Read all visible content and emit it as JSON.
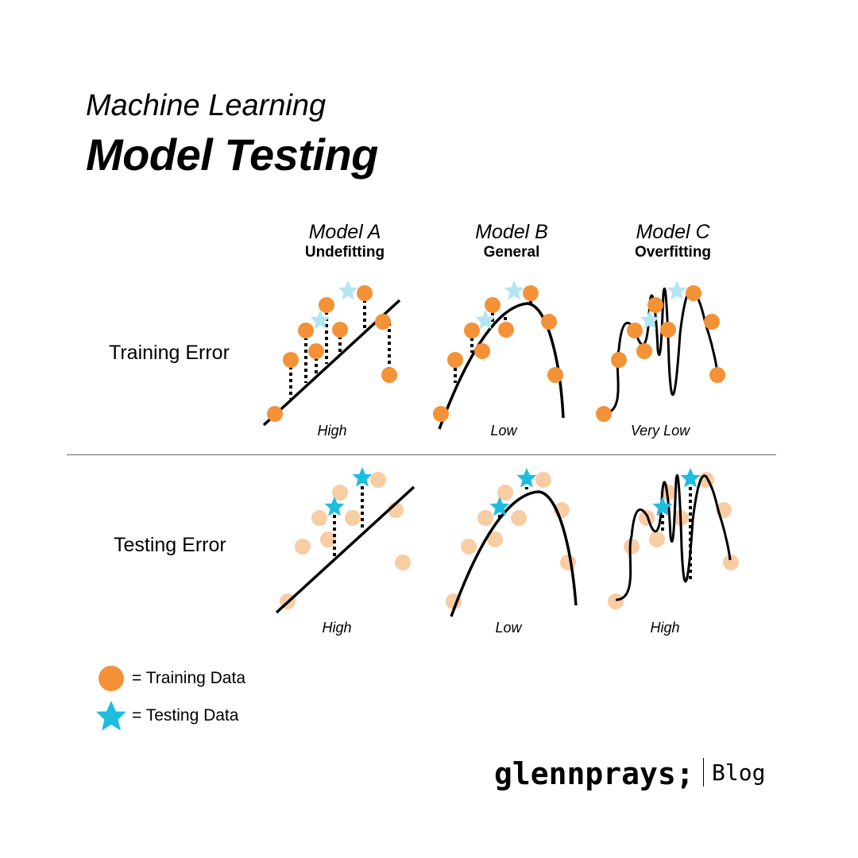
{
  "header": {
    "subtitle": "Machine Learning",
    "title": "Model Testing"
  },
  "models": [
    {
      "name": "Model A",
      "type": "Undefitting",
      "training_error": "High",
      "testing_error": "High"
    },
    {
      "name": "Model B",
      "type": "General",
      "training_error": "Low",
      "testing_error": "Low"
    },
    {
      "name": "Model C",
      "type": "Overfitting",
      "training_error": "Very Low",
      "testing_error": "High"
    }
  ],
  "rows": {
    "training": "Training Error",
    "testing": "Testing Error"
  },
  "legend": {
    "training": "= Training Data",
    "testing": "= Testing Data"
  },
  "brand": {
    "name": "glennprays;",
    "blog": "Blog"
  },
  "colors": {
    "training_point": "#F39237",
    "training_point_faded": "#F8CDA3",
    "testing_point": "#1DBDE0",
    "testing_point_faded": "#B3E6F2",
    "curve": "#000000"
  }
}
